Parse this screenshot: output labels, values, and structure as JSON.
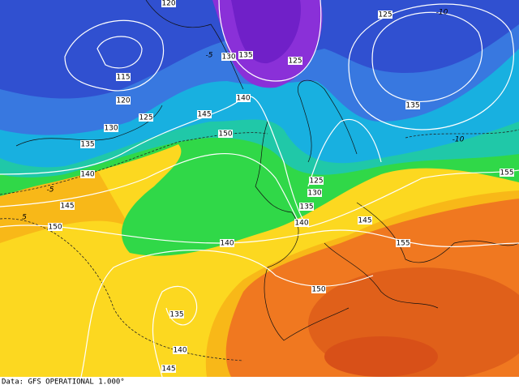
{
  "footer": {
    "source": "Data: GFS OPERATIONAL 1.000°"
  },
  "height_labels": [
    120,
    115,
    120,
    125,
    130,
    135,
    140,
    145,
    150,
    130,
    135,
    125,
    140,
    145,
    150,
    125,
    135,
    155,
    125,
    130,
    135,
    140,
    145,
    155,
    140,
    150,
    135,
    140,
    145
  ],
  "temperature_labels": [
    -10,
    -5,
    -5,
    5,
    -10
  ]
}
